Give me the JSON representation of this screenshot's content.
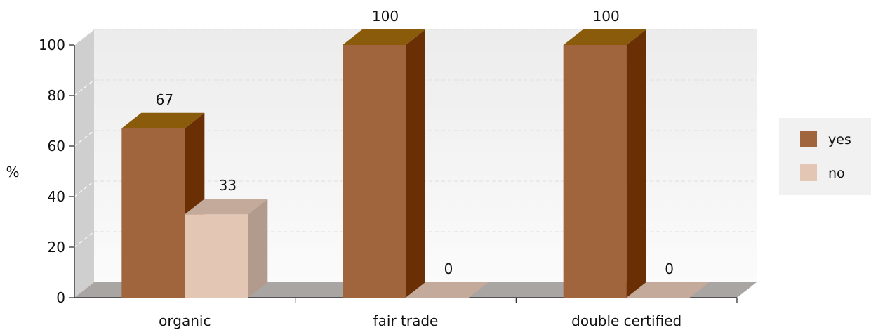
{
  "chart_data": {
    "type": "bar",
    "ylabel": "%",
    "ylim": [
      0,
      100
    ],
    "yticks": [
      0,
      20,
      40,
      60,
      80,
      100
    ],
    "categories": [
      "organic",
      "fair trade",
      "double certified"
    ],
    "series": [
      {
        "name": "yes",
        "values": [
          67,
          100,
          100
        ],
        "color": "#a0653d"
      },
      {
        "name": "no",
        "values": [
          33,
          0,
          0
        ],
        "color": "#e4c6b4"
      }
    ],
    "data_labels": true,
    "grid": true,
    "legend_position": "right"
  }
}
